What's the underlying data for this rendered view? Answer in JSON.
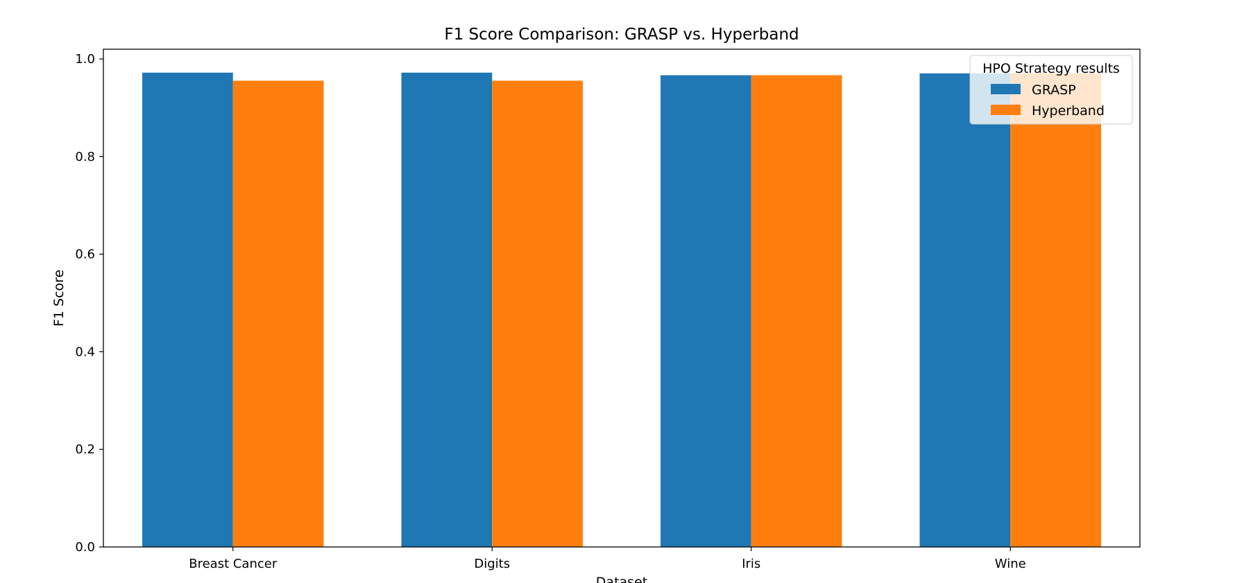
{
  "chart_data": {
    "type": "bar",
    "title": "F1 Score Comparison: GRASP vs. Hyperband",
    "xlabel": "Dataset",
    "ylabel": "F1 Score",
    "categories": [
      "Breast Cancer",
      "Digits",
      "Iris",
      "Wine"
    ],
    "series": [
      {
        "name": "GRASP",
        "color": "#1f77b4",
        "values": [
          0.972,
          0.972,
          0.9667,
          0.9705
        ]
      },
      {
        "name": "Hyperband",
        "color": "#ff7f0e",
        "values": [
          0.9555,
          0.9555,
          0.9667,
          0.9705
        ]
      }
    ],
    "ylim": [
      0,
      1.02
    ],
    "yticks": [
      0.0,
      0.2,
      0.4,
      0.6,
      0.8,
      1.0
    ],
    "ytick_labels": [
      "0.0",
      "0.2",
      "0.4",
      "0.6",
      "0.8",
      "1.0"
    ],
    "grid": false,
    "legend": {
      "title": "HPO Strategy results",
      "placement": "top-right"
    }
  }
}
